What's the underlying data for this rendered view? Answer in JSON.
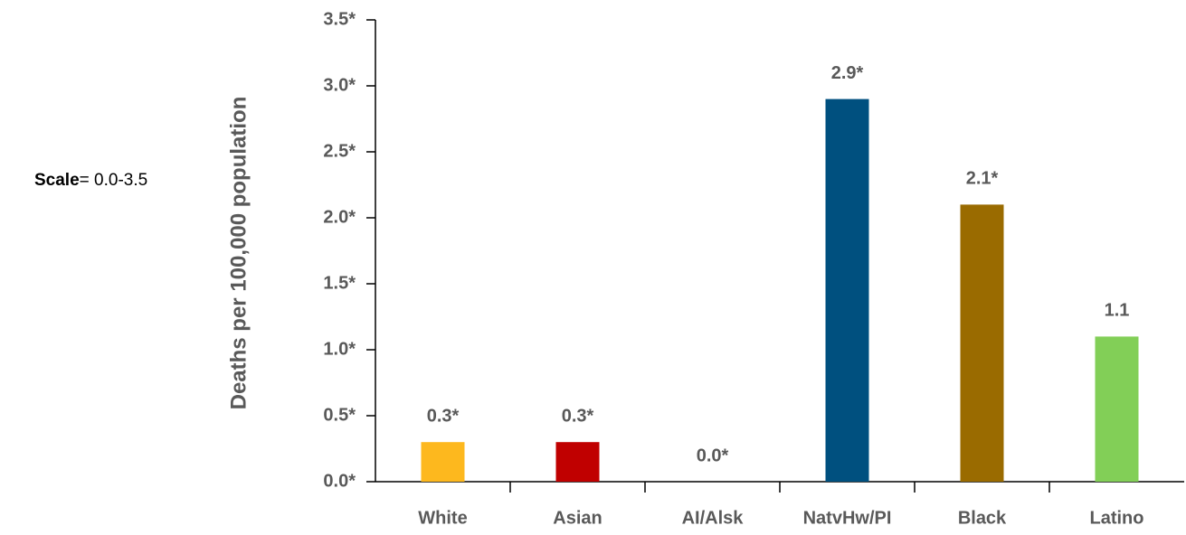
{
  "chart_data": {
    "type": "bar",
    "ylabel": "Deaths per 100,000 population",
    "annotation": {
      "label": "Scale",
      "text": "= 0.0-3.5"
    },
    "categories": [
      "White",
      "Asian",
      "AI/Alsk",
      "NatvHw/PI",
      "Black",
      "Latino"
    ],
    "values": [
      0.3,
      0.3,
      0.0,
      2.9,
      2.1,
      1.1
    ],
    "value_labels": [
      "0.3*",
      "0.3*",
      "0.0*",
      "2.9*",
      "2.1*",
      "1.1"
    ],
    "colors": [
      "#FDB81E",
      "#C00000",
      "#7F7F7F",
      "#00507F",
      "#9A6B00",
      "#82CF57"
    ],
    "ylim": [
      0,
      3.5
    ],
    "yticks": [
      {
        "value": 0,
        "label": "0.0*"
      },
      {
        "value": 0.5,
        "label": "0.5*"
      },
      {
        "value": 1,
        "label": "1.0*"
      },
      {
        "value": 1.5,
        "label": "1.5*"
      },
      {
        "value": 2,
        "label": "2.0*"
      },
      {
        "value": 2.5,
        "label": "2.5*"
      },
      {
        "value": 3,
        "label": "3.0*"
      },
      {
        "value": 3.5,
        "label": "3.5*"
      }
    ],
    "grid": false
  }
}
